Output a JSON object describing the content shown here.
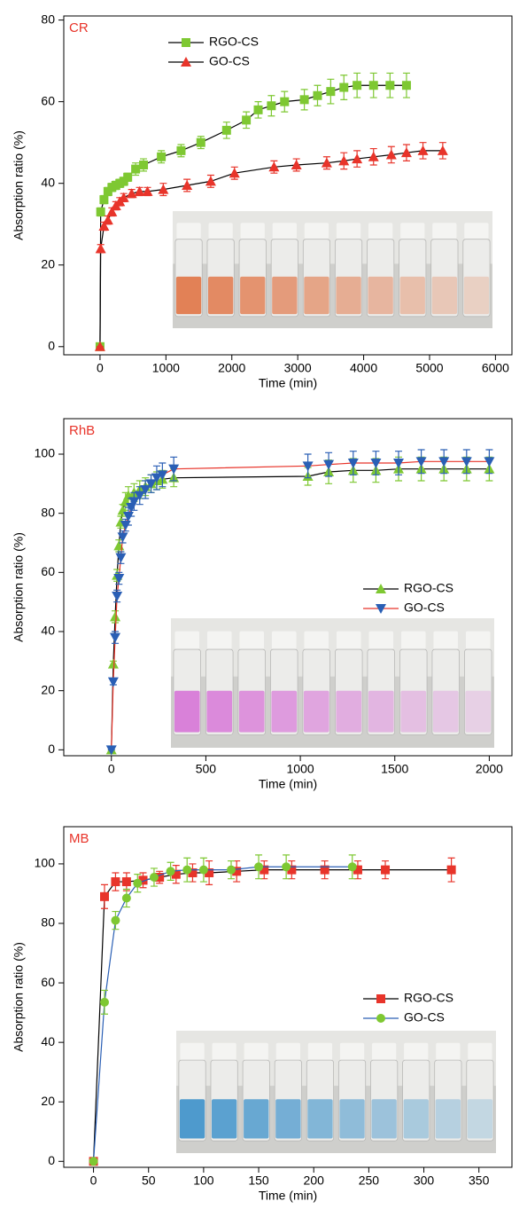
{
  "chart_data": [
    {
      "type": "line",
      "annotation": "CR",
      "xlabel": "Time (min)",
      "ylabel": "Absorption ratio  (%)",
      "xlim": [
        -550,
        6250
      ],
      "ylim": [
        -2,
        81
      ],
      "xticks": [
        0,
        1000,
        2000,
        3000,
        4000,
        5000,
        6000
      ],
      "yticks": [
        0,
        20,
        40,
        60,
        80
      ],
      "legend_loc": "upper center",
      "series": [
        {
          "name": "RGO-CS",
          "color": "#7ec832",
          "line_color": "#000000",
          "marker": "square",
          "x": [
            0,
            10,
            60,
            120,
            180,
            240,
            300,
            360,
            420,
            540,
            660,
            930,
            1230,
            1530,
            1920,
            2220,
            2400,
            2600,
            2800,
            3100,
            3300,
            3500,
            3700,
            3900,
            4150,
            4400,
            4650
          ],
          "values": [
            0,
            33,
            36,
            38,
            39,
            39.5,
            40,
            40.5,
            41.5,
            43.5,
            44.5,
            46.5,
            48,
            50,
            53,
            55.5,
            58,
            59,
            60,
            60.5,
            61.5,
            62.5,
            63.5,
            64,
            64,
            64,
            64
          ],
          "errors": [
            0,
            1,
            1,
            1,
            1,
            1,
            1,
            1,
            1,
            1.5,
            1.5,
            1.5,
            1.5,
            1.5,
            2,
            2,
            2,
            2.5,
            2.5,
            2.5,
            2.5,
            3,
            3,
            3,
            3,
            3,
            3
          ]
        },
        {
          "name": "GO-CS",
          "color": "#e8342a",
          "line_color": "#000000",
          "marker": "triangle-up",
          "x": [
            0,
            10,
            60,
            120,
            180,
            240,
            300,
            360,
            480,
            600,
            720,
            960,
            1320,
            1680,
            2040,
            2640,
            2980,
            3440,
            3700,
            3900,
            4150,
            4420,
            4650,
            4900,
            5200
          ],
          "values": [
            0,
            24,
            29.5,
            31,
            33,
            34.5,
            35.5,
            36.5,
            37.5,
            38,
            38,
            38.5,
            39.5,
            40.5,
            42.5,
            44,
            44.5,
            45,
            45.5,
            46,
            46.5,
            47,
            47.5,
            48,
            48
          ],
          "errors": [
            0,
            1,
            1,
            1,
            1,
            1,
            1,
            1,
            1,
            1,
            1,
            1.5,
            1.5,
            1.5,
            1.5,
            1.5,
            1.5,
            1.5,
            2,
            2,
            2,
            2,
            2,
            2,
            2
          ]
        }
      ]
    },
    {
      "type": "line",
      "annotation": "RhB",
      "xlabel": "Time (min)",
      "ylabel": "Absorption ratio  (%)",
      "xlim": [
        -252,
        2120
      ],
      "ylim": [
        -2,
        112
      ],
      "xticks": [
        0,
        500,
        1000,
        1500,
        2000
      ],
      "yticks": [
        0,
        20,
        40,
        60,
        80,
        100
      ],
      "legend_loc": "center right",
      "series": [
        {
          "name": "RGO-CS",
          "color": "#7ec832",
          "line_color": "#000000",
          "marker": "triangle-up",
          "x": [
            0,
            10,
            20,
            30,
            40,
            50,
            60,
            75,
            90,
            120,
            150,
            180,
            210,
            240,
            270,
            330,
            1040,
            1150,
            1280,
            1400,
            1520,
            1640,
            1760,
            1880,
            2000
          ],
          "values": [
            0,
            29,
            45,
            59,
            69,
            77,
            81,
            84,
            86,
            87,
            88,
            89,
            90,
            91,
            91.5,
            92,
            92.5,
            94,
            94.5,
            94.5,
            95,
            95,
            95,
            95,
            95
          ],
          "errors": [
            0,
            1,
            2,
            2,
            2,
            2,
            2,
            3,
            3,
            3,
            3,
            3,
            3,
            3,
            3,
            3,
            3,
            4,
            4,
            4,
            4,
            4,
            4,
            4,
            4
          ]
        },
        {
          "name": "GO-CS",
          "color": "#2a5fb5",
          "line_color": "#e8342a",
          "marker": "triangle-down",
          "x": [
            0,
            10,
            20,
            30,
            40,
            50,
            60,
            75,
            90,
            105,
            120,
            150,
            180,
            210,
            240,
            270,
            330,
            1040,
            1150,
            1280,
            1400,
            1520,
            1640,
            1760,
            1880,
            2000
          ],
          "values": [
            0,
            23,
            38,
            52,
            58,
            65,
            72,
            76,
            79,
            82,
            84,
            86,
            88,
            90,
            92,
            93,
            95,
            96,
            96.5,
            97,
            97,
            97,
            97.5,
            97.5,
            97.5,
            97.5
          ],
          "errors": [
            0,
            1,
            2,
            2,
            2,
            2,
            2,
            2,
            3,
            3,
            3,
            3,
            3,
            3,
            4,
            4,
            4,
            4,
            4,
            4,
            4,
            4,
            4,
            4,
            4,
            4
          ]
        }
      ]
    },
    {
      "type": "line",
      "annotation": "MB",
      "xlabel": "Time (min)",
      "ylabel": "Absorption ratio (%)",
      "xlim": [
        -27,
        380
      ],
      "ylim": [
        -2,
        112.5
      ],
      "xticks": [
        0,
        50,
        100,
        150,
        200,
        250,
        300,
        350
      ],
      "yticks": [
        0,
        20,
        40,
        60,
        80,
        100
      ],
      "legend_loc": "center right",
      "series": [
        {
          "name": "RGO-CS",
          "color": "#e8342a",
          "line_color": "#000000",
          "marker": "square",
          "x": [
            0,
            10,
            20,
            30,
            45,
            60,
            75,
            90,
            105,
            130,
            155,
            180,
            210,
            240,
            265,
            325
          ],
          "values": [
            0,
            89,
            94,
            94,
            94.5,
            95.5,
            96.5,
            97,
            97,
            97.5,
            98,
            98,
            98,
            98,
            98,
            98
          ],
          "errors": [
            0,
            4,
            3,
            3,
            2.5,
            2,
            3,
            3,
            4,
            3.5,
            3,
            3,
            3,
            3,
            3,
            4
          ]
        },
        {
          "name": "GO-CS",
          "color": "#7ec832",
          "line_color": "#2a5fb5",
          "marker": "circle",
          "x": [
            0,
            10,
            20,
            30,
            40,
            55,
            70,
            85,
            100,
            125,
            150,
            175,
            235
          ],
          "values": [
            0,
            53.5,
            81,
            88.5,
            93.5,
            95.5,
            97.5,
            98,
            98,
            98,
            99,
            99,
            99
          ],
          "errors": [
            0,
            4,
            3,
            3,
            3,
            3,
            3,
            4,
            4,
            3,
            4,
            4,
            4
          ]
        }
      ]
    }
  ]
}
